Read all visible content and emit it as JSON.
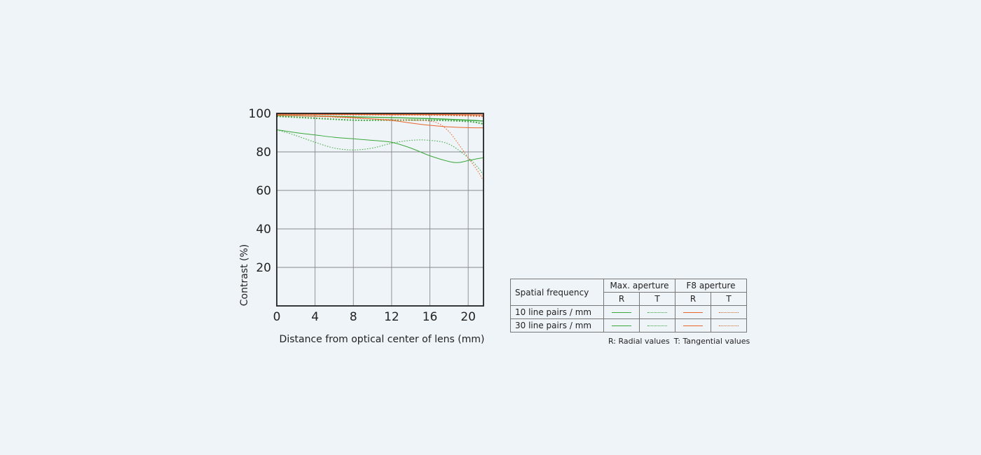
{
  "chart_data": {
    "type": "line",
    "xlabel": "Distance from optical center of lens (mm)",
    "ylabel": "Contrast (%)",
    "xlim": [
      0,
      21.6
    ],
    "ylim": [
      0,
      100
    ],
    "x_ticks": [
      0,
      4,
      8,
      12,
      16,
      20
    ],
    "y_ticks": [
      20,
      40,
      60,
      80,
      100
    ],
    "grid": true,
    "colors": {
      "max_aperture": "#3aa83a",
      "f8_aperture": "#e8642a"
    },
    "series": [
      {
        "name": "Max. aperture R 10 line pairs / mm",
        "color": "#3aa83a",
        "style": "solid",
        "width": 1.4,
        "x": [
          0,
          4,
          8,
          12,
          16,
          20,
          21.6
        ],
        "y": [
          99.0,
          98.6,
          98.2,
          97.8,
          97.3,
          96.5,
          96.0
        ]
      },
      {
        "name": "Max. aperture T 10 line pairs / mm",
        "color": "#3aa83a",
        "style": "dotted",
        "width": 2.0,
        "x": [
          0,
          4,
          8,
          12,
          16,
          20,
          21.6
        ],
        "y": [
          98.5,
          97.5,
          96.5,
          96.5,
          96.5,
          95.8,
          94.5
        ]
      },
      {
        "name": "F8 aperture R 10 line pairs / mm",
        "color": "#e8642a",
        "style": "solid",
        "width": 1.4,
        "x": [
          0,
          4,
          8,
          12,
          16,
          20,
          21.6
        ],
        "y": [
          99.6,
          99.5,
          99.5,
          99.4,
          99.4,
          99.3,
          99.2
        ]
      },
      {
        "name": "F8 aperture T 10 line pairs / mm",
        "color": "#e8642a",
        "style": "dotted",
        "width": 2.0,
        "x": [
          0,
          4,
          8,
          12,
          16,
          20,
          21.6
        ],
        "y": [
          99.6,
          99.5,
          99.4,
          99.3,
          99.2,
          98.8,
          98.5
        ]
      },
      {
        "name": "Max. aperture R 30 line pairs / mm",
        "color": "#3aa83a",
        "style": "solid",
        "width": 1.0,
        "x": [
          0,
          2,
          4,
          6,
          8,
          10,
          12,
          14,
          16,
          18,
          19,
          20,
          21,
          21.6
        ],
        "y": [
          91.5,
          90.0,
          88.8,
          87.6,
          86.8,
          86.0,
          85.0,
          82.0,
          78.0,
          75.0,
          74.5,
          75.5,
          76.5,
          77.0
        ]
      },
      {
        "name": "Max. aperture T 30 line pairs / mm",
        "color": "#3aa83a",
        "style": "dotted",
        "width": 1.0,
        "x": [
          0,
          2,
          4,
          6,
          8,
          10,
          12,
          14,
          16,
          18,
          20,
          21,
          21.6
        ],
        "y": [
          91.5,
          88.5,
          85.0,
          82.0,
          81.0,
          82.0,
          84.5,
          86.0,
          86.0,
          84.0,
          77.0,
          72.0,
          68.0
        ]
      },
      {
        "name": "F8 aperture R 30 line pairs / mm",
        "color": "#e8642a",
        "style": "solid",
        "width": 1.0,
        "x": [
          0,
          4,
          8,
          12,
          14,
          16,
          18,
          20,
          21.6
        ],
        "y": [
          99.0,
          98.6,
          97.8,
          96.3,
          95.0,
          93.8,
          93.0,
          92.6,
          92.5
        ]
      },
      {
        "name": "F8 aperture T 30 line pairs / mm",
        "color": "#e8642a",
        "style": "dotted",
        "width": 1.0,
        "x": [
          0,
          4,
          8,
          12,
          14,
          16,
          17,
          18,
          19,
          20,
          21,
          21.6
        ],
        "y": [
          99.0,
          98.5,
          97.5,
          96.8,
          96.5,
          96.0,
          94.5,
          90.5,
          84.0,
          77.0,
          70.0,
          65.0
        ]
      }
    ]
  },
  "legend": {
    "spatial_frequency": "Spatial frequency",
    "max_aperture": "Max. aperture",
    "f8_aperture": "F8 aperture",
    "r": "R",
    "t": "T",
    "row10": "10 line pairs / mm",
    "row30": "30 line pairs / mm",
    "note_radial": "R: Radial values",
    "note_tangential": "T: Tangential values"
  }
}
